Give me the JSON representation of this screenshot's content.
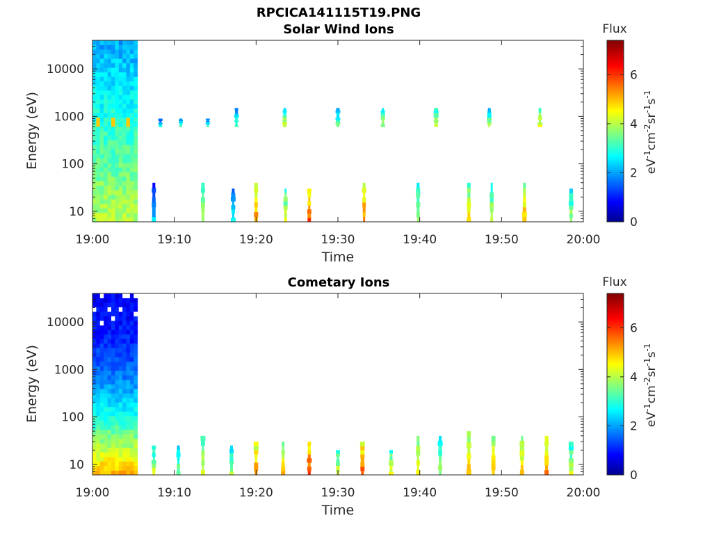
{
  "figure": {
    "filename": "RPCICA141115T19.PNG"
  },
  "colors": {
    "colormap": [
      "#00008f",
      "#0000ff",
      "#0080ff",
      "#00ffff",
      "#80ff80",
      "#ffff00",
      "#ff8000",
      "#ff0000",
      "#800000"
    ],
    "axis": "#262626",
    "background": "#ffffff"
  },
  "chart_data": [
    {
      "type": "heatmap",
      "title": "Solar Wind Ions",
      "xlabel": "Time",
      "ylabel": "Energy (eV)",
      "xticks": [
        "19:00",
        "19:10",
        "19:20",
        "19:30",
        "19:40",
        "19:50",
        "20:00"
      ],
      "xlim_minutes": [
        0,
        60
      ],
      "yscale": "log",
      "yticks": [
        "10",
        "100",
        "1000",
        "10000"
      ],
      "ylim": [
        6,
        40000
      ],
      "colorbar": {
        "title": "Flux",
        "ticks": [
          "0",
          "2",
          "4",
          "6"
        ],
        "clim": [
          0,
          7.4
        ],
        "unit_base": "eV",
        "unit_label": "eV-1cm-2sr-1s-1"
      },
      "continuous_block": {
        "t_start": 0,
        "t_end": 5.5,
        "description_values": "broad flux ~2-4 across all energies, higher (~4) below 30 eV"
      },
      "bursts": [
        {
          "t": 7.5,
          "e_lo": 6,
          "e_hi": 40,
          "v": 2.4
        },
        {
          "t": 8.3,
          "e_lo": 600,
          "e_hi": 900,
          "v": 2.8
        },
        {
          "t": 10.8,
          "e_lo": 600,
          "e_hi": 900,
          "v": 3.5
        },
        {
          "t": 13.5,
          "e_lo": 6,
          "e_hi": 40,
          "v": 4.2
        },
        {
          "t": 14.1,
          "e_lo": 600,
          "e_hi": 900,
          "v": 3.0
        },
        {
          "t": 17.2,
          "e_lo": 6,
          "e_hi": 30,
          "v": 2.8
        },
        {
          "t": 17.6,
          "e_lo": 600,
          "e_hi": 1500,
          "v": 3.2
        },
        {
          "t": 20.0,
          "e_lo": 6,
          "e_hi": 40,
          "v": 5.5
        },
        {
          "t": 23.5,
          "e_lo": 600,
          "e_hi": 1500,
          "v": 4.2
        },
        {
          "t": 23.6,
          "e_lo": 6,
          "e_hi": 30,
          "v": 4.5
        },
        {
          "t": 26.5,
          "e_lo": 6,
          "e_hi": 30,
          "v": 5.8
        },
        {
          "t": 30.0,
          "e_lo": 600,
          "e_hi": 1500,
          "v": 3.5
        },
        {
          "t": 33.2,
          "e_lo": 6,
          "e_hi": 40,
          "v": 5.5
        },
        {
          "t": 35.5,
          "e_lo": 600,
          "e_hi": 1500,
          "v": 4.0
        },
        {
          "t": 39.8,
          "e_lo": 6,
          "e_hi": 40,
          "v": 4.2
        },
        {
          "t": 42.0,
          "e_lo": 600,
          "e_hi": 1500,
          "v": 4.2
        },
        {
          "t": 46.0,
          "e_lo": 6,
          "e_hi": 40,
          "v": 4.8
        },
        {
          "t": 48.5,
          "e_lo": 600,
          "e_hi": 1500,
          "v": 3.8
        },
        {
          "t": 48.8,
          "e_lo": 6,
          "e_hi": 40,
          "v": 4.3
        },
        {
          "t": 52.8,
          "e_lo": 6,
          "e_hi": 40,
          "v": 5.2
        },
        {
          "t": 54.7,
          "e_lo": 600,
          "e_hi": 1500,
          "v": 4.6
        },
        {
          "t": 58.5,
          "e_lo": 6,
          "e_hi": 30,
          "v": 4.0
        }
      ]
    },
    {
      "type": "heatmap",
      "title": "Cometary Ions",
      "xlabel": "Time",
      "ylabel": "Energy (eV)",
      "xticks": [
        "19:00",
        "19:10",
        "19:20",
        "19:30",
        "19:40",
        "19:50",
        "20:00"
      ],
      "xlim_minutes": [
        0,
        60
      ],
      "yscale": "log",
      "yticks": [
        "10",
        "100",
        "1000",
        "10000"
      ],
      "ylim": [
        6,
        40000
      ],
      "colorbar": {
        "title": "Flux",
        "ticks": [
          "0",
          "2",
          "4",
          "6"
        ],
        "clim": [
          0,
          7.4
        ],
        "unit_base": "eV",
        "unit_label": "eV-1cm-2sr-1s-1"
      },
      "continuous_block": {
        "t_start": 0,
        "t_end": 5.5,
        "description_values": "flux ~1 above 1000 eV rising to ~5 below 20 eV"
      },
      "bursts": [
        {
          "t": 7.5,
          "e_lo": 6,
          "e_hi": 25,
          "v": 4.2
        },
        {
          "t": 10.5,
          "e_lo": 6,
          "e_hi": 25,
          "v": 3.8
        },
        {
          "t": 13.5,
          "e_lo": 6,
          "e_hi": 40,
          "v": 4.6
        },
        {
          "t": 17.0,
          "e_lo": 6,
          "e_hi": 25,
          "v": 4.0
        },
        {
          "t": 20.0,
          "e_lo": 6,
          "e_hi": 30,
          "v": 5.5
        },
        {
          "t": 23.3,
          "e_lo": 6,
          "e_hi": 30,
          "v": 5.0
        },
        {
          "t": 26.5,
          "e_lo": 6,
          "e_hi": 30,
          "v": 6.0
        },
        {
          "t": 30.0,
          "e_lo": 6,
          "e_hi": 20,
          "v": 4.5
        },
        {
          "t": 33.0,
          "e_lo": 6,
          "e_hi": 30,
          "v": 5.8
        },
        {
          "t": 36.5,
          "e_lo": 6,
          "e_hi": 20,
          "v": 4.5
        },
        {
          "t": 39.8,
          "e_lo": 6,
          "e_hi": 40,
          "v": 4.8
        },
        {
          "t": 42.5,
          "e_lo": 6,
          "e_hi": 40,
          "v": 4.0
        },
        {
          "t": 46.0,
          "e_lo": 6,
          "e_hi": 50,
          "v": 5.0
        },
        {
          "t": 49.0,
          "e_lo": 6,
          "e_hi": 40,
          "v": 5.2
        },
        {
          "t": 52.5,
          "e_lo": 6,
          "e_hi": 40,
          "v": 5.0
        },
        {
          "t": 55.5,
          "e_lo": 6,
          "e_hi": 40,
          "v": 5.5
        },
        {
          "t": 58.5,
          "e_lo": 6,
          "e_hi": 30,
          "v": 4.2
        }
      ]
    }
  ]
}
